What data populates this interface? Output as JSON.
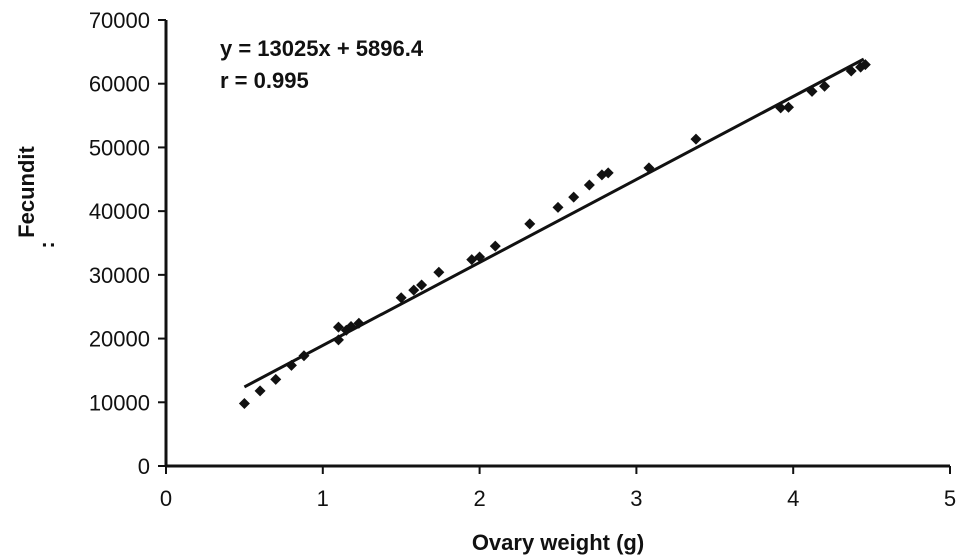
{
  "chart_data": {
    "type": "scatter",
    "title": "",
    "xlabel": "Ovary weight (g)",
    "ylabel": "Fecundit",
    "ylabel_trail": ":",
    "xlim": [
      0,
      5
    ],
    "ylim": [
      0,
      70000
    ],
    "x_ticks": [
      "0",
      "1",
      "2",
      "3",
      "4",
      "5"
    ],
    "y_ticks": [
      "0",
      "10000",
      "20000",
      "30000",
      "40000",
      "50000",
      "60000",
      "70000"
    ],
    "grid": false,
    "legend": "none",
    "marker": "diamond",
    "marker_color": "#111111",
    "annotations": [
      "y = 13025x + 5896.4",
      "r = 0.995"
    ],
    "trendline": {
      "slope": 13025,
      "intercept": 5896.4,
      "x_range": [
        0.5,
        4.45
      ]
    },
    "series": [
      {
        "points": [
          [
            0.5,
            9800
          ],
          [
            0.6,
            11800
          ],
          [
            0.7,
            13600
          ],
          [
            0.8,
            15800
          ],
          [
            0.88,
            17300
          ],
          [
            1.1,
            19800
          ],
          [
            1.1,
            21800
          ],
          [
            1.15,
            21300
          ],
          [
            1.18,
            21900
          ],
          [
            1.23,
            22400
          ],
          [
            1.5,
            26400
          ],
          [
            1.58,
            27600
          ],
          [
            1.63,
            28400
          ],
          [
            1.74,
            30400
          ],
          [
            1.95,
            32400
          ],
          [
            2.0,
            32800
          ],
          [
            2.1,
            34500
          ],
          [
            2.32,
            38000
          ],
          [
            2.5,
            40600
          ],
          [
            2.6,
            42200
          ],
          [
            2.7,
            44100
          ],
          [
            2.78,
            45700
          ],
          [
            2.82,
            46000
          ],
          [
            3.08,
            46800
          ],
          [
            3.38,
            51300
          ],
          [
            3.92,
            56200
          ],
          [
            3.97,
            56300
          ],
          [
            4.12,
            58800
          ],
          [
            4.2,
            59600
          ],
          [
            4.37,
            62000
          ],
          [
            4.43,
            62600
          ],
          [
            4.46,
            63000
          ]
        ]
      }
    ]
  }
}
